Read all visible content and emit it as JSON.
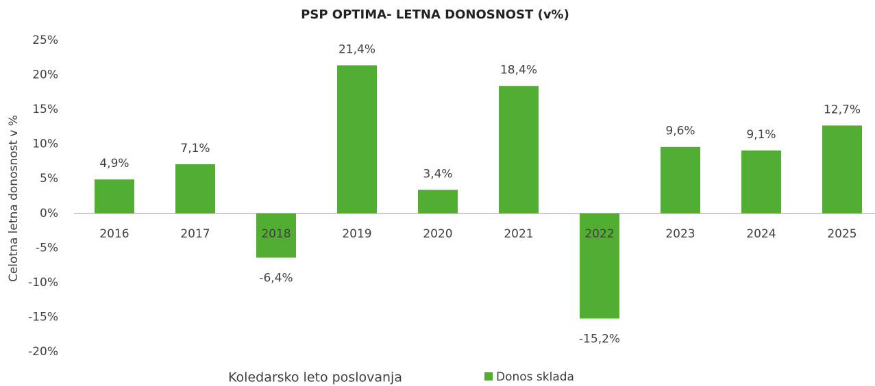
{
  "chart_data": {
    "type": "bar",
    "title": "PSP OPTIMA- LETNA DONOSNOST (v%)",
    "x_label": "Koledarsko leto poslovanja",
    "y_label": "Celotna letna donosnost v %",
    "categories": [
      "2016",
      "2017",
      "2018",
      "2019",
      "2020",
      "2021",
      "2022",
      "2023",
      "2024",
      "2025"
    ],
    "series": [
      {
        "name": "Donos sklada",
        "color": "#52ae32",
        "values": [
          4.9,
          7.1,
          -6.4,
          21.4,
          3.4,
          18.4,
          -15.2,
          9.6,
          9.1,
          12.7
        ],
        "value_labels": [
          "4,9%",
          "7,1%",
          "-6,4%",
          "21,4%",
          "3,4%",
          "18,4%",
          "-15,2%",
          "9,6%",
          "9,1%",
          "12,7%"
        ]
      }
    ],
    "ylim": [
      -20,
      25
    ],
    "yticks": [
      {
        "value": -20,
        "label": "-20%"
      },
      {
        "value": -15,
        "label": "-15%"
      },
      {
        "value": -10,
        "label": "-10%"
      },
      {
        "value": -5,
        "label": "-5%"
      },
      {
        "value": 0,
        "label": "0%"
      },
      {
        "value": 5,
        "label": "5%"
      },
      {
        "value": 10,
        "label": "10%"
      },
      {
        "value": 15,
        "label": "15%"
      },
      {
        "value": 20,
        "label": "20%"
      },
      {
        "value": 25,
        "label": "25%"
      }
    ],
    "grid": false,
    "legend": "bottom"
  }
}
